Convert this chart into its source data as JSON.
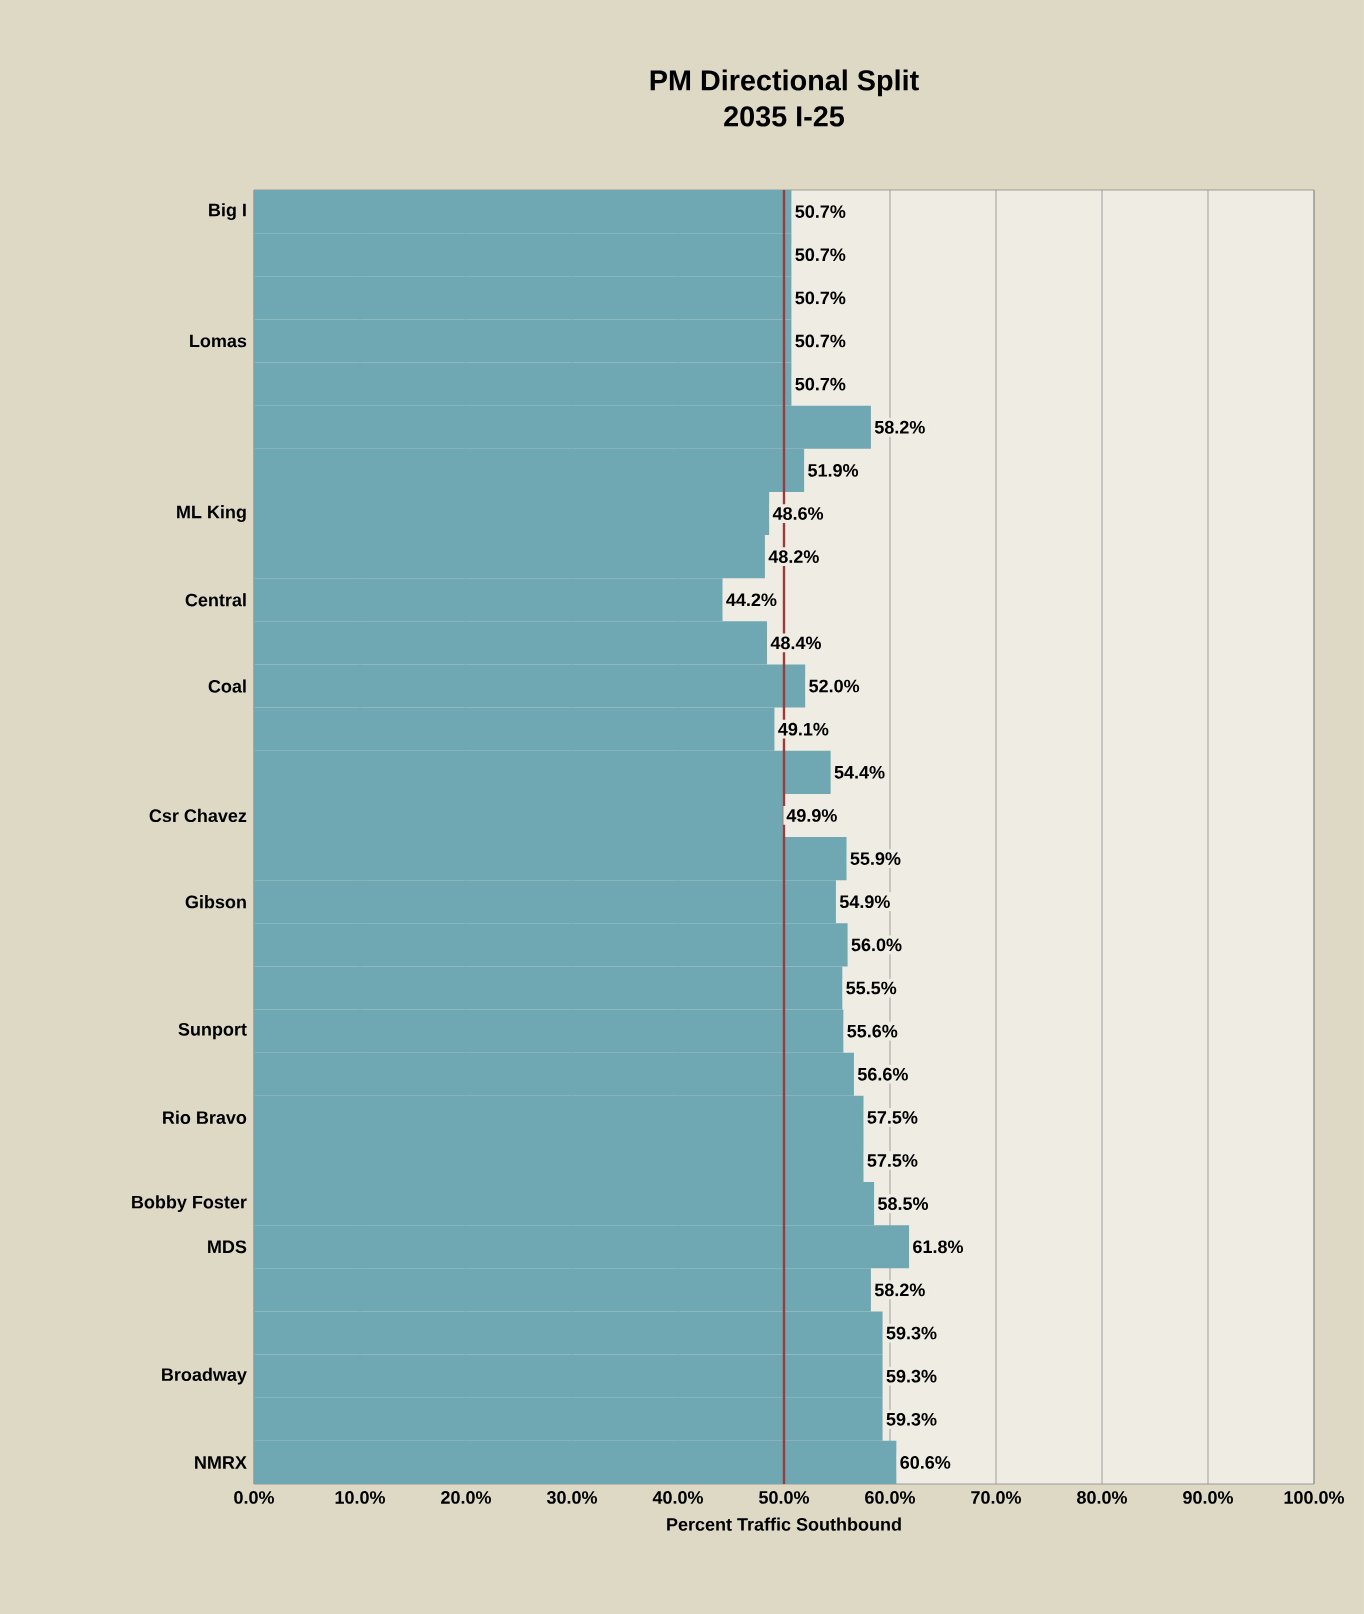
{
  "chart_data": {
    "type": "bar",
    "orientation": "horizontal",
    "title": "PM Directional Split",
    "subtitle": "2035 I-25",
    "xlabel": "Percent Traffic Southbound",
    "categories": [
      "Big I",
      null,
      null,
      "Lomas",
      null,
      null,
      null,
      "ML King",
      null,
      "Central",
      null,
      "Coal",
      null,
      null,
      "Csr Chavez",
      null,
      "Gibson",
      null,
      null,
      "Sunport",
      null,
      "Rio Bravo",
      null,
      "Bobby Foster",
      "MDS",
      null,
      null,
      "Broadway",
      null,
      "NMRX"
    ],
    "values": [
      50.7,
      50.7,
      50.7,
      50.7,
      50.7,
      58.2,
      51.9,
      48.6,
      48.2,
      44.2,
      48.4,
      52.0,
      49.1,
      54.4,
      49.9,
      55.9,
      54.9,
      56.0,
      55.5,
      55.6,
      56.6,
      57.5,
      57.5,
      58.5,
      61.8,
      58.2,
      59.3,
      59.3,
      59.3,
      60.6
    ],
    "value_labels": [
      "50.7%",
      "50.7%",
      "50.7%",
      "50.7%",
      "50.7%",
      "58.2%",
      "51.9%",
      "48.6%",
      "48.2%",
      "44.2%",
      "48.4%",
      "52.0%",
      "49.1%",
      "54.4%",
      "49.9%",
      "55.9%",
      "54.9%",
      "56.0%",
      "55.5%",
      "55.6%",
      "56.6%",
      "57.5%",
      "57.5%",
      "58.5%",
      "61.8%",
      "58.2%",
      "59.3%",
      "59.3%",
      "59.3%",
      "60.6%"
    ],
    "color": "#6fa8b3",
    "xlim": [
      0,
      100
    ],
    "xticks": [
      {
        "value": 0,
        "label": "0.0%"
      },
      {
        "value": 10,
        "label": "10.0%"
      },
      {
        "value": 20,
        "label": "20.0%"
      },
      {
        "value": 30,
        "label": "30.0%"
      },
      {
        "value": 40,
        "label": "40.0%"
      },
      {
        "value": 50,
        "label": "50.0%"
      },
      {
        "value": 60,
        "label": "60.0%"
      },
      {
        "value": 70,
        "label": "70.0%"
      },
      {
        "value": 80,
        "label": "80.0%"
      },
      {
        "value": 90,
        "label": "90.0%"
      },
      {
        "value": 100,
        "label": "100.0%"
      }
    ],
    "grid": "x",
    "ref_lines": [
      {
        "axis": "x",
        "value": 50,
        "color": "#9b3b3b"
      }
    ]
  }
}
